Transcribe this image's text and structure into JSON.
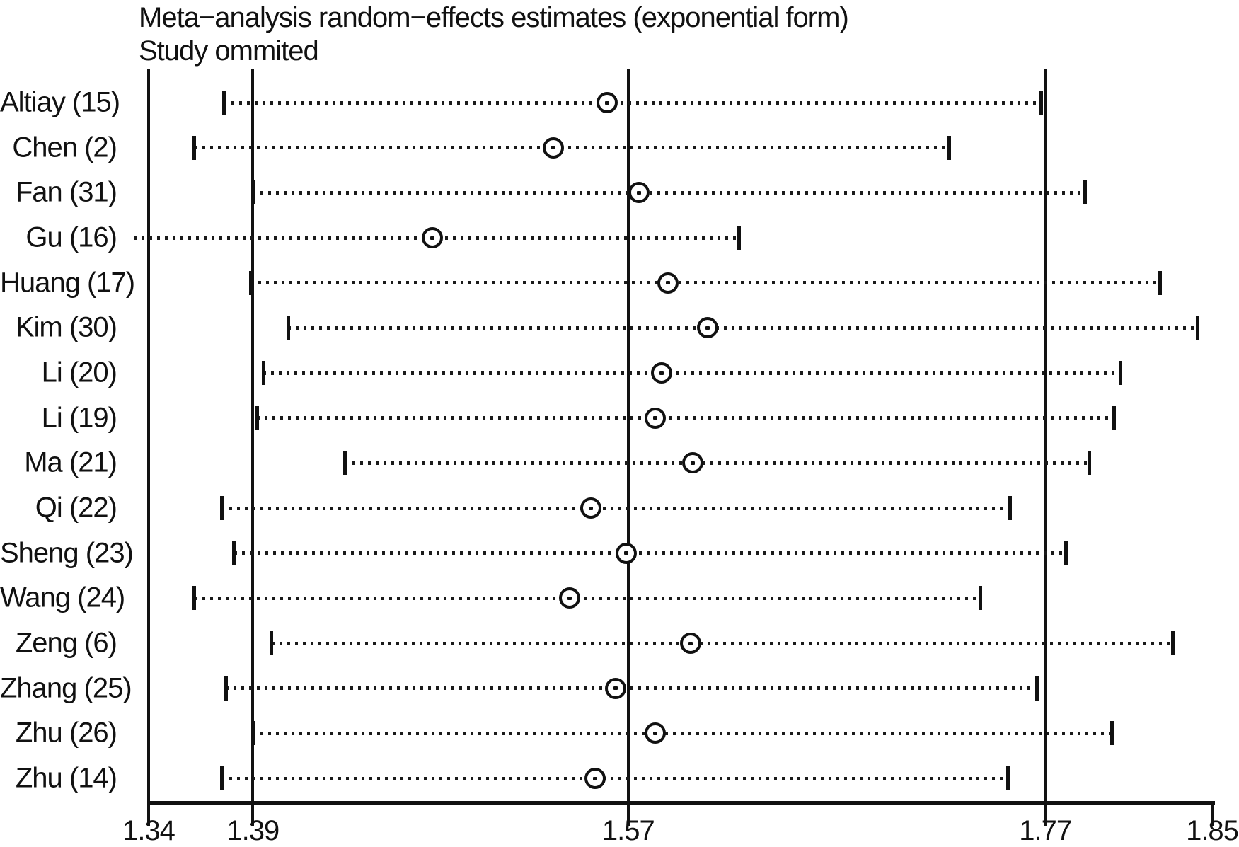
{
  "title": {
    "line1": "Meta−analysis random−effects estimates (exponential form)",
    "line2": "Study ommited"
  },
  "colors": {
    "ink": "#111111",
    "background": "#ffffff"
  },
  "chart_data": {
    "type": "scatter",
    "subtype": "leave-one-out-sensitivity-forest",
    "title": "Meta−analysis random−effects estimates (exponential form)",
    "subtitle": "Study ommited",
    "orientation": "horizontal",
    "grid": "vertical-reference-lines",
    "x_axis": {
      "min": 1.34,
      "max": 1.85,
      "tick_values": [
        1.34,
        1.39,
        1.57,
        1.77,
        1.85
      ],
      "tick_labels": [
        "1.34",
        "1.39",
        "1.57",
        "1.77",
        "1.85"
      ],
      "reference_line_values": [
        1.39,
        1.57,
        1.77
      ]
    },
    "marker_glyph": "open-circle-with-center-dot",
    "interval_style": "dotted-line-with-bar-caps",
    "studies": [
      {
        "label": "Altiay (15)",
        "lower": 1.376,
        "estimate": 1.56,
        "upper": 1.768
      },
      {
        "label": "Chen (2)",
        "lower": 1.362,
        "estimate": 1.534,
        "upper": 1.724
      },
      {
        "label": "Fan (31)",
        "lower": 1.39,
        "estimate": 1.575,
        "upper": 1.789
      },
      {
        "label": "Gu (16)",
        "lower": 1.333,
        "estimate": 1.476,
        "upper": 1.623,
        "clip_lower": true
      },
      {
        "label": "Huang (17)",
        "lower": 1.389,
        "estimate": 1.589,
        "upper": 1.825
      },
      {
        "label": "Kim (30)",
        "lower": 1.407,
        "estimate": 1.608,
        "upper": 1.843
      },
      {
        "label": "Li (20)",
        "lower": 1.395,
        "estimate": 1.586,
        "upper": 1.806
      },
      {
        "label": "Li (19)",
        "lower": 1.392,
        "estimate": 1.583,
        "upper": 1.803
      },
      {
        "label": "Ma (21)",
        "lower": 1.434,
        "estimate": 1.601,
        "upper": 1.791
      },
      {
        "label": "Qi (22)",
        "lower": 1.375,
        "estimate": 1.552,
        "upper": 1.753
      },
      {
        "label": "Sheng (23)",
        "lower": 1.381,
        "estimate": 1.569,
        "upper": 1.78
      },
      {
        "label": "Wang (24)",
        "lower": 1.362,
        "estimate": 1.542,
        "upper": 1.739
      },
      {
        "label": "Zeng (6)",
        "lower": 1.399,
        "estimate": 1.6,
        "upper": 1.831
      },
      {
        "label": "Zhang (25)",
        "lower": 1.377,
        "estimate": 1.564,
        "upper": 1.766
      },
      {
        "label": "Zhu (26)",
        "lower": 1.39,
        "estimate": 1.583,
        "upper": 1.802
      },
      {
        "label": "Zhu (14)",
        "lower": 1.375,
        "estimate": 1.554,
        "upper": 1.752
      }
    ]
  }
}
